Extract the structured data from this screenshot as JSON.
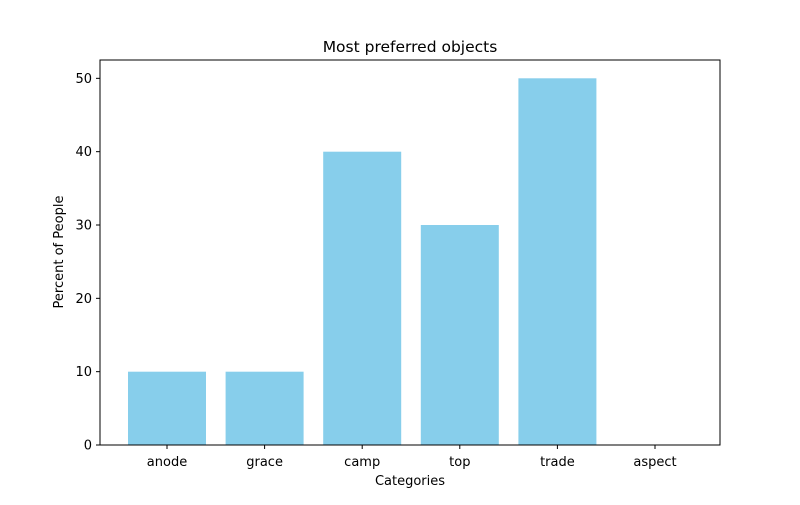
{
  "chart_data": {
    "type": "bar",
    "title": "Most preferred objects",
    "xlabel": "Categories",
    "ylabel": "Percent of People",
    "categories": [
      "anode",
      "grace",
      "camp",
      "top",
      "trade",
      "aspect"
    ],
    "values": [
      10,
      10,
      40,
      30,
      50,
      0
    ],
    "ylim": [
      0,
      52.5
    ],
    "yticks": [
      0,
      10,
      20,
      30,
      40,
      50
    ],
    "bar_color": "#87ceeb",
    "grid": false,
    "legend": "none"
  }
}
